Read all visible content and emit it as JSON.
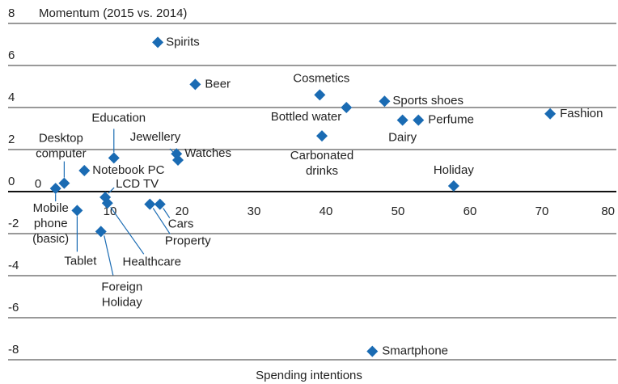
{
  "chart_data": {
    "type": "scatter",
    "title": "Momentum (2015 vs. 2014)",
    "x_label": "Spending intentions",
    "color": "#1a6bb3",
    "grid": true,
    "xlim": [
      0,
      80
    ],
    "ylim": [
      -8,
      8
    ],
    "xticks": [
      0,
      10,
      20,
      30,
      40,
      50,
      60,
      70,
      80
    ],
    "yticks": [
      -8,
      -6,
      -4,
      -2,
      0,
      2,
      4,
      6,
      8
    ],
    "labels": [
      "Spirits",
      "Beer",
      "Cosmetics",
      "Sports shoes",
      "Fashion",
      "Bottled water",
      "Dairy",
      "Perfume",
      "Carbonated drinks",
      "Holiday",
      "Education",
      "Jewellery",
      "Watches",
      "Notebook PC",
      "Desktop computer",
      "Mobile phone (basic)",
      "LCD TV",
      "Healthcare",
      "Tablet",
      "Property",
      "Cars",
      "Foreign Holiday",
      "Smartphone"
    ],
    "x": [
      16.3,
      21.5,
      38.8,
      47.8,
      70.8,
      42.5,
      50.3,
      52.5,
      39.1,
      57.4,
      10.2,
      19.1,
      18.9,
      6.1,
      3.3,
      2.1,
      9.0,
      9.3,
      5.1,
      15.2,
      16.6,
      8.4,
      46.1
    ],
    "y": [
      7.1,
      5.1,
      4.6,
      4.3,
      3.7,
      4.0,
      3.4,
      3.4,
      2.65,
      0.27,
      1.6,
      1.5,
      1.8,
      1.0,
      0.4,
      0.15,
      -0.27,
      -0.55,
      -0.9,
      -0.6,
      -0.6,
      -1.9,
      -7.6
    ]
  }
}
